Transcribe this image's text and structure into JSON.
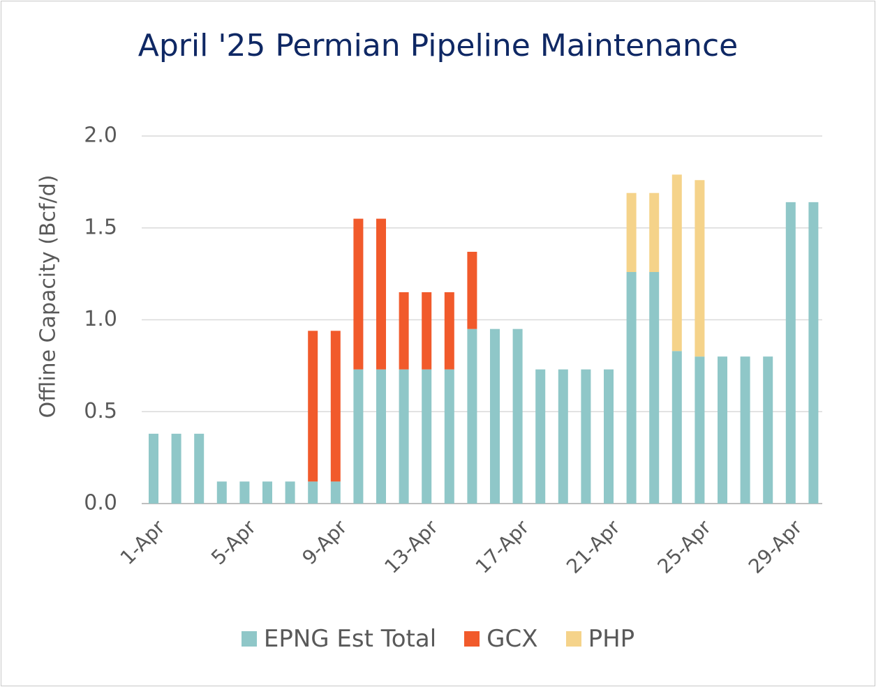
{
  "chart_data": {
    "type": "bar",
    "stacked": true,
    "title": "April '25 Permian Pipeline Maintenance",
    "ylabel": "Offline Capacity (Bcf/d)",
    "xlabel": "",
    "ylim": [
      0,
      2.0
    ],
    "yticks": [
      "0.0",
      "0.5",
      "1.0",
      "1.5",
      "2.0"
    ],
    "ytick_values": [
      0,
      0.5,
      1.0,
      1.5,
      2.0
    ],
    "grid": true,
    "legend_position": "bottom",
    "categories": [
      "1-Apr",
      "2-Apr",
      "3-Apr",
      "4-Apr",
      "5-Apr",
      "6-Apr",
      "7-Apr",
      "8-Apr",
      "9-Apr",
      "10-Apr",
      "11-Apr",
      "12-Apr",
      "13-Apr",
      "14-Apr",
      "15-Apr",
      "16-Apr",
      "17-Apr",
      "18-Apr",
      "19-Apr",
      "20-Apr",
      "21-Apr",
      "22-Apr",
      "23-Apr",
      "24-Apr",
      "25-Apr",
      "26-Apr",
      "27-Apr",
      "28-Apr",
      "29-Apr",
      "30-Apr"
    ],
    "xtick_labels": [
      "1-Apr",
      "5-Apr",
      "9-Apr",
      "13-Apr",
      "17-Apr",
      "21-Apr",
      "25-Apr",
      "29-Apr"
    ],
    "series": [
      {
        "name": "EPNG Est Total",
        "color": "#8fc7c8",
        "values": [
          0.38,
          0.38,
          0.38,
          0.12,
          0.12,
          0.12,
          0.12,
          0.12,
          0.12,
          0.73,
          0.73,
          0.73,
          0.73,
          0.73,
          0.95,
          0.95,
          0.95,
          0.73,
          0.73,
          0.73,
          0.73,
          1.26,
          1.26,
          0.83,
          0.8,
          0.8,
          0.8,
          0.8,
          1.64,
          1.64
        ]
      },
      {
        "name": "GCX",
        "color": "#f15a2b",
        "values": [
          0,
          0,
          0,
          0,
          0,
          0,
          0,
          0.82,
          0.82,
          0.82,
          0.82,
          0.42,
          0.42,
          0.42,
          0.42,
          0,
          0,
          0,
          0,
          0,
          0,
          0,
          0,
          0,
          0,
          0,
          0,
          0,
          0,
          0
        ]
      },
      {
        "name": "PHP",
        "color": "#f5d38a",
        "values": [
          0,
          0,
          0,
          0,
          0,
          0,
          0,
          0,
          0,
          0,
          0,
          0,
          0,
          0,
          0,
          0,
          0,
          0,
          0,
          0,
          0,
          0.43,
          0.43,
          0.96,
          0.96,
          0,
          0,
          0,
          0,
          0
        ]
      }
    ]
  }
}
